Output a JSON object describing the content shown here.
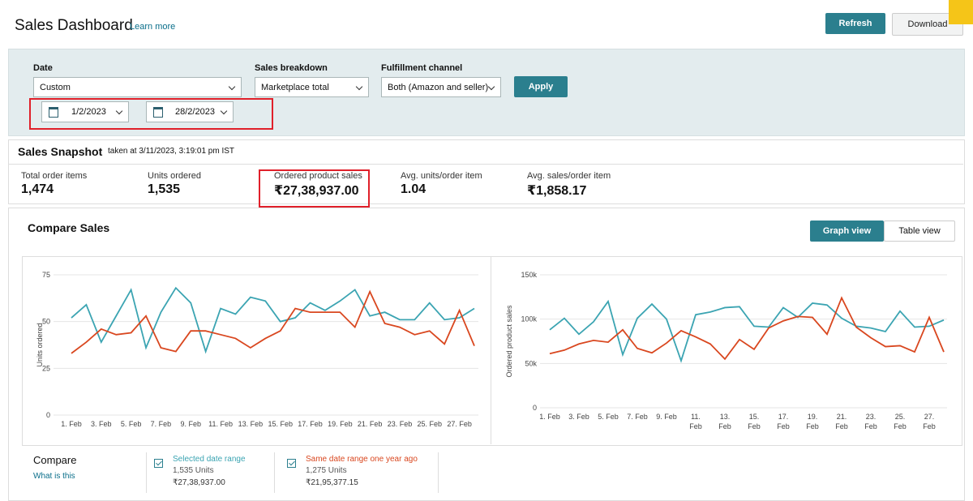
{
  "header": {
    "title": "Sales Dashboard",
    "link": "Learn more",
    "buttons": [
      "Refresh",
      "Download"
    ]
  },
  "filters": {
    "date_label": "Date",
    "date_select": "Custom",
    "start_date": "1/2/2023",
    "end_date": "28/2/2023",
    "breakdown_label": "Sales breakdown",
    "breakdown_select": "Marketplace total",
    "channel_label": "Fulfillment channel",
    "channel_select": "Both (Amazon and seller)",
    "apply": "Apply"
  },
  "snapshot": {
    "title": "Sales Snapshot",
    "timestamp": "taken at 3/11/2023, 3:19:01 pm IST",
    "metrics": [
      {
        "label": "Total order items",
        "value": "1,474"
      },
      {
        "label": "Units ordered",
        "value": "1,535"
      },
      {
        "label": "Ordered product sales",
        "value": "₹27,38,937.00"
      },
      {
        "label": "Avg. units/order item",
        "value": "1.04"
      },
      {
        "label": "Avg. sales/order item",
        "value": "₹1,858.17"
      }
    ]
  },
  "compare": {
    "title": "Compare Sales",
    "views": [
      "Graph view",
      "Table view"
    ],
    "legend_title": "Compare",
    "legend_link": "What is this",
    "items": [
      {
        "name": "Selected date range",
        "units": "1,535 Units",
        "sales": "₹27,38,937.00"
      },
      {
        "name": "Same date range one year ago",
        "units": "1,275 Units",
        "sales": "₹21,95,377.15"
      }
    ]
  },
  "chart_data": [
    {
      "type": "line",
      "ylabel": "Units ordered",
      "categories": [
        "1. Feb",
        null,
        "3. Feb",
        null,
        "5. Feb",
        null,
        "7. Feb",
        null,
        "9. Feb",
        null,
        "11. Feb",
        null,
        "13. Feb",
        null,
        "15. Feb",
        null,
        "17. Feb",
        null,
        "19. Feb",
        null,
        "21. Feb",
        null,
        "23. Feb",
        null,
        "25. Feb",
        null,
        "27. Feb",
        null
      ],
      "ylim": [
        0,
        75
      ],
      "yticks": [
        0,
        25,
        50,
        75
      ],
      "grid": true,
      "series": [
        {
          "color": "#3ba4b2",
          "values": [
            52,
            59,
            39,
            53,
            67,
            36,
            55,
            68,
            60,
            34,
            57,
            54,
            63,
            61,
            50,
            52,
            60,
            56,
            61,
            67,
            53,
            55,
            51,
            51,
            60,
            51,
            52,
            57
          ]
        },
        {
          "color": "#d9471f",
          "values": [
            33,
            39,
            46,
            43,
            44,
            53,
            36,
            34,
            45,
            45,
            43,
            41,
            36,
            41,
            45,
            57,
            55,
            55,
            55,
            47,
            66,
            49,
            47,
            43,
            45,
            38,
            56,
            37
          ]
        }
      ]
    },
    {
      "type": "line",
      "ylabel": "Ordered product sales",
      "categories": [
        "1. Feb",
        null,
        "3. Feb",
        null,
        "5. Feb",
        null,
        "7. Feb",
        null,
        "9. Feb",
        null,
        "11. Feb",
        null,
        "13. Feb",
        null,
        "15. Feb",
        null,
        "17. Feb",
        null,
        "19. Feb",
        null,
        "21. Feb",
        null,
        "23. Feb",
        null,
        "25. Feb",
        null,
        "27. Feb",
        null
      ],
      "ylim": [
        0,
        150000
      ],
      "yticks": [
        0,
        {
          "value": 50000,
          "label": "50k"
        },
        {
          "value": 100000,
          "label": "100k"
        },
        {
          "value": 150000,
          "label": "150k"
        }
      ],
      "grid": true,
      "series": [
        {
          "color": "#3ba4b2",
          "values": [
            88000,
            101000,
            83000,
            97000,
            120000,
            60000,
            101000,
            117000,
            100000,
            53000,
            105000,
            108000,
            113000,
            114000,
            92000,
            91000,
            113000,
            102000,
            118000,
            116000,
            101000,
            92000,
            90000,
            86000,
            109000,
            91000,
            92000,
            99000
          ]
        },
        {
          "color": "#d9471f",
          "values": [
            61000,
            65000,
            72000,
            76000,
            74000,
            88000,
            67000,
            62000,
            73000,
            87000,
            80000,
            72000,
            55000,
            77000,
            66000,
            90000,
            98000,
            103000,
            102000,
            83000,
            124000,
            91000,
            79000,
            69000,
            70000,
            63000,
            102000,
            63000
          ]
        }
      ]
    }
  ]
}
